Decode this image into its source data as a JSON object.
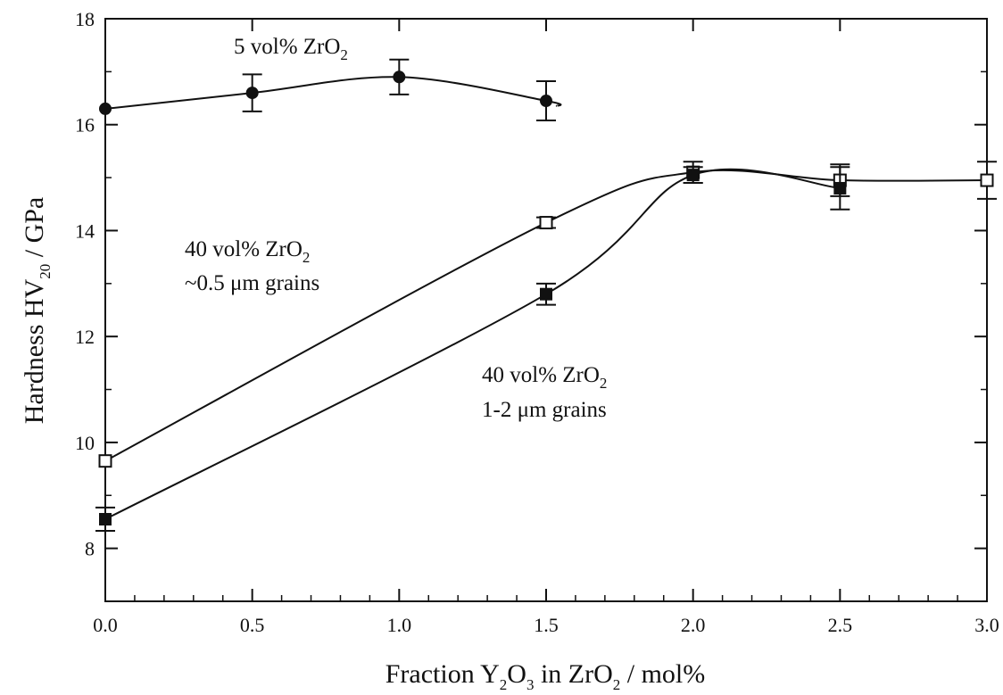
{
  "chart_data": {
    "type": "scatter",
    "xlabel": "Fraction Y2O3 in ZrO2 / mol%",
    "ylabel": "Hardness HV20 / GPa",
    "xlim": [
      0,
      3
    ],
    "ylim": [
      7,
      18
    ],
    "x_ticks": [
      "0.0",
      "0.5",
      "1.0",
      "1.5",
      "2.0",
      "2.5",
      "3.0"
    ],
    "y_ticks": [
      "8",
      "10",
      "12",
      "14",
      "16",
      "18"
    ],
    "grid": false,
    "series": [
      {
        "name": "5 vol% ZrO2",
        "marker": "filled-circle",
        "x": [
          0.0,
          0.5,
          1.0,
          1.5
        ],
        "y": [
          16.3,
          16.6,
          16.9,
          16.45
        ],
        "err": [
          0,
          0.35,
          0.33,
          0.37
        ]
      },
      {
        "name": "40 vol% ZrO2 ~0.5 μm grains",
        "marker": "open-square",
        "x": [
          0.0,
          1.5,
          2.0,
          2.5,
          3.0
        ],
        "y": [
          9.65,
          14.15,
          15.1,
          14.95,
          14.95
        ],
        "err": [
          0,
          0.1,
          0.2,
          0.3,
          0.35
        ]
      },
      {
        "name": "40 vol% ZrO2 1-2 μm grains",
        "marker": "filled-square",
        "x": [
          0.0,
          1.5,
          2.0,
          2.5
        ],
        "y": [
          8.55,
          12.8,
          15.05,
          14.8
        ],
        "err": [
          0.22,
          0.2,
          0.15,
          0.4
        ]
      }
    ],
    "annotations": [
      {
        "text": "5 vol% ZrO",
        "sub": "2",
        "line2": ""
      },
      {
        "text": "40 vol% ZrO",
        "sub": "2",
        "line2": "~0.5 μm grains"
      },
      {
        "text": "40 vol% ZrO",
        "sub": "2",
        "line2": "1-2 μm grains"
      }
    ]
  }
}
